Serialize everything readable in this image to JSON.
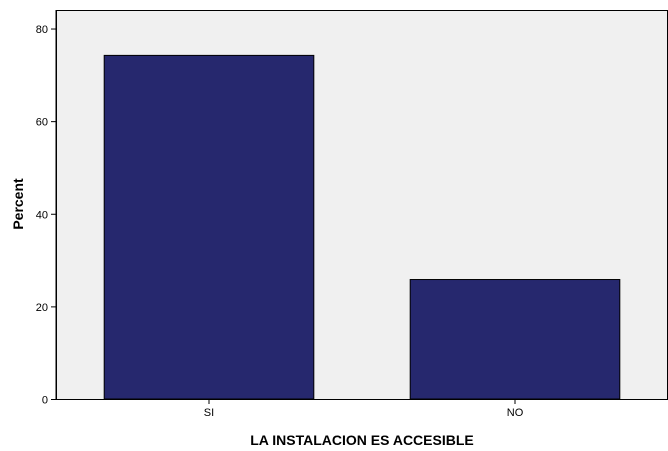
{
  "chart_data": {
    "type": "bar",
    "title": "",
    "xlabel": "LA INSTALACION ES ACCESIBLE",
    "ylabel": "Percent",
    "categories": [
      "SI",
      "NO"
    ],
    "values": [
      74.2,
      25.8
    ],
    "ylim": [
      0,
      84
    ],
    "yticks": [
      0,
      20,
      40,
      60,
      80
    ],
    "grid": false,
    "legend": "none",
    "colors": {
      "bar_fill": "#26286e",
      "bar_stroke": "#000000",
      "plot_background": "#f0f0f0",
      "axis": "#000000"
    }
  }
}
